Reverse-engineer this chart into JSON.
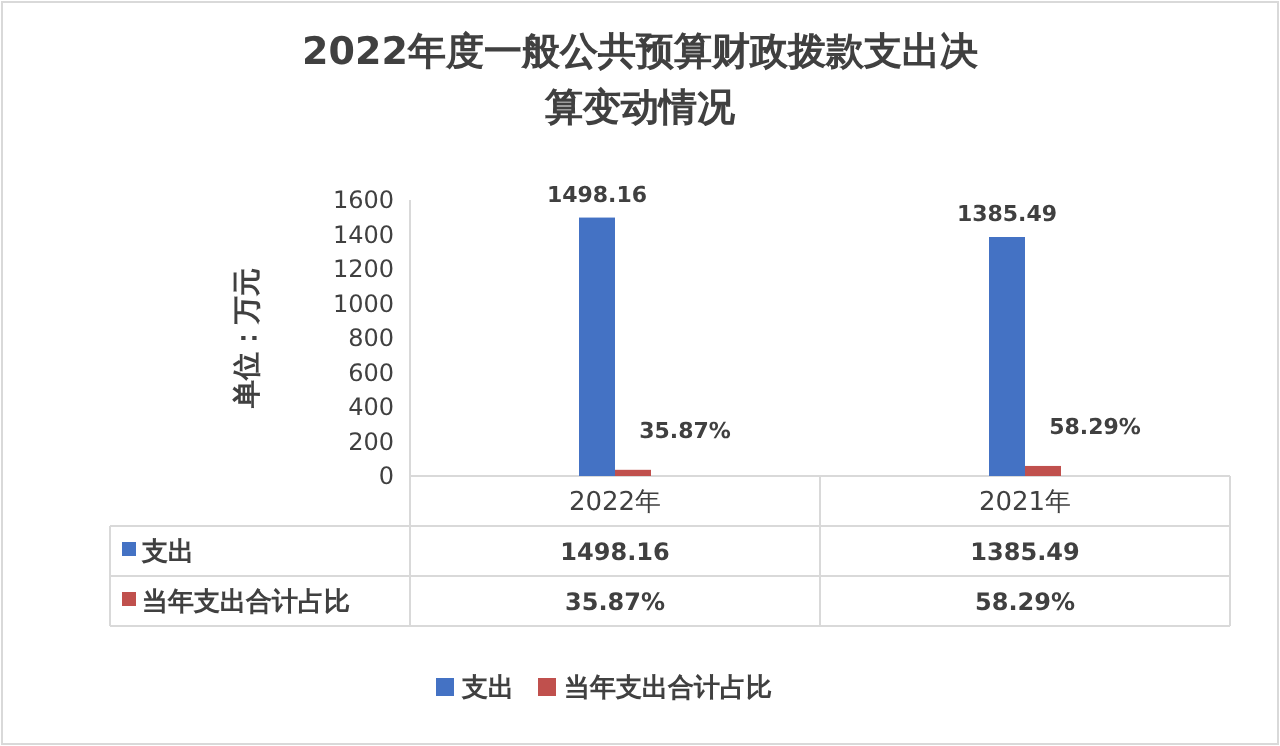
{
  "chart_data": {
    "type": "bar",
    "title": "2022年度一般公共预算财政拨款支出决算变动情况",
    "ylabel": "单位：万元",
    "categories": [
      "2022年",
      "2021年"
    ],
    "series": [
      {
        "name": "支出",
        "color": "#4472c4",
        "values": [
          1498.16,
          1385.49
        ],
        "value_labels": [
          "1498.16",
          "1385.49"
        ]
      },
      {
        "name": "当年支出合计占比",
        "color": "#c0504d",
        "values": [
          35.87,
          58.29
        ],
        "value_labels": [
          "35.87%",
          "58.29%"
        ]
      }
    ],
    "ylim": [
      0,
      1600
    ],
    "yticks": [
      0,
      200,
      400,
      600,
      800,
      1000,
      1200,
      1400,
      1600
    ],
    "grid": false,
    "legend": "bottom"
  }
}
